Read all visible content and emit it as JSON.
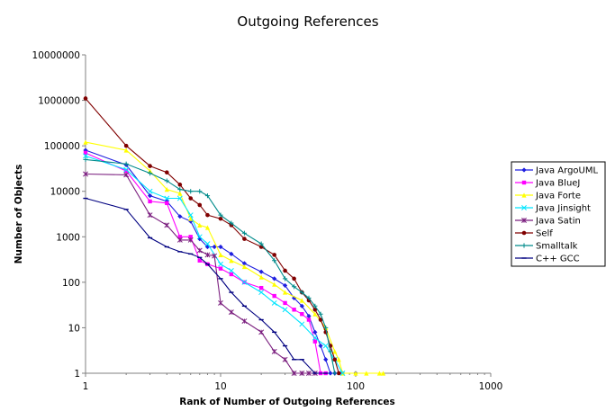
{
  "chart_data": {
    "type": "line",
    "title": "Outgoing References",
    "xlabel": "Rank of Number of Outgoing References",
    "ylabel": "Number of Objects",
    "x_scale": "log",
    "y_scale": "log",
    "xlim": [
      1,
      1000
    ],
    "ylim": [
      1,
      10000000
    ],
    "x_ticks": [
      "1",
      "10",
      "100",
      "1000"
    ],
    "y_ticks": [
      "1",
      "10",
      "100",
      "1000",
      "10000",
      "100000",
      "1000000",
      "10000000"
    ],
    "grid": false,
    "legend_position": "right",
    "series": [
      {
        "name": "Java ArgoUML",
        "color": "#1f1fe0",
        "marker": "diamond",
        "x": [
          1,
          2,
          3,
          4,
          5,
          6,
          7,
          8,
          9,
          10,
          12,
          15,
          20,
          25,
          30,
          35,
          40,
          45,
          50,
          55,
          60,
          65,
          70,
          80,
          100
        ],
        "y": [
          80000,
          38000,
          8000,
          6000,
          2800,
          2200,
          900,
          600,
          600,
          600,
          420,
          260,
          170,
          120,
          85,
          45,
          30,
          18,
          8,
          4,
          2,
          1,
          1,
          1,
          1
        ]
      },
      {
        "name": "Java BlueJ",
        "color": "#ff00ff",
        "marker": "square",
        "x": [
          1,
          2,
          3,
          4,
          5,
          6,
          7,
          8,
          10,
          12,
          15,
          20,
          25,
          30,
          35,
          40,
          45,
          50,
          55,
          60
        ],
        "y": [
          70000,
          28000,
          6000,
          5500,
          1000,
          1000,
          300,
          250,
          200,
          150,
          100,
          75,
          50,
          35,
          25,
          20,
          15,
          5,
          1,
          1
        ]
      },
      {
        "name": "Java Forte",
        "color": "#ffff00",
        "marker": "triangle",
        "x": [
          1,
          2,
          3,
          4,
          5,
          6,
          7,
          8,
          10,
          12,
          15,
          20,
          25,
          30,
          40,
          50,
          60,
          70,
          75,
          80,
          100,
          120,
          150,
          160
        ],
        "y": [
          120000,
          80000,
          28000,
          11000,
          9000,
          2500,
          1800,
          1600,
          400,
          300,
          220,
          130,
          90,
          60,
          40,
          20,
          10,
          3,
          2,
          1,
          1,
          1,
          1,
          1
        ]
      },
      {
        "name": "Java Jinsight",
        "color": "#00e5ff",
        "marker": "cross",
        "x": [
          1,
          2,
          3,
          4,
          5,
          6,
          7,
          8,
          10,
          12,
          15,
          20,
          25,
          30,
          40,
          50,
          60,
          70,
          80
        ],
        "y": [
          60000,
          30000,
          10000,
          7000,
          7000,
          3000,
          1000,
          700,
          250,
          180,
          100,
          60,
          35,
          25,
          12,
          6,
          4,
          2,
          1
        ]
      },
      {
        "name": "Java Satin",
        "color": "#7b1f7f",
        "marker": "star",
        "x": [
          1,
          2,
          3,
          4,
          5,
          6,
          7,
          8,
          9,
          10,
          12,
          15,
          20,
          25,
          30,
          35,
          40,
          45,
          50
        ],
        "y": [
          24000,
          23000,
          3000,
          1800,
          850,
          850,
          500,
          400,
          380,
          35,
          22,
          14,
          8,
          3,
          2,
          1,
          1,
          1,
          1
        ]
      },
      {
        "name": "Self",
        "color": "#800000",
        "marker": "circle",
        "x": [
          1,
          2,
          3,
          4,
          5,
          6,
          7,
          8,
          10,
          12,
          15,
          20,
          25,
          30,
          35,
          40,
          45,
          50,
          55,
          60,
          65,
          70,
          75
        ],
        "y": [
          1100000,
          100000,
          36000,
          26000,
          14000,
          7000,
          5000,
          3000,
          2500,
          1800,
          900,
          600,
          400,
          180,
          120,
          60,
          40,
          25,
          15,
          8,
          4,
          2,
          1
        ]
      },
      {
        "name": "Smalltalk",
        "color": "#008b8b",
        "marker": "plus",
        "x": [
          1,
          2,
          3,
          4,
          5,
          6,
          7,
          8,
          10,
          12,
          15,
          20,
          25,
          30,
          35,
          40,
          45,
          50,
          55,
          60,
          65,
          70
        ],
        "y": [
          50000,
          40000,
          25000,
          17000,
          11000,
          10000,
          10000,
          8000,
          3000,
          2000,
          1200,
          700,
          300,
          120,
          80,
          60,
          45,
          30,
          20,
          10,
          3,
          1
        ]
      },
      {
        "name": "C++ GCC",
        "color": "#000080",
        "marker": "dash",
        "x": [
          1,
          2,
          3,
          4,
          5,
          6,
          7,
          8,
          10,
          12,
          15,
          20,
          25,
          30,
          35,
          40,
          50,
          60
        ],
        "y": [
          7000,
          4000,
          950,
          600,
          470,
          420,
          350,
          250,
          120,
          60,
          30,
          15,
          8,
          4,
          2,
          2,
          1,
          1
        ]
      }
    ]
  }
}
